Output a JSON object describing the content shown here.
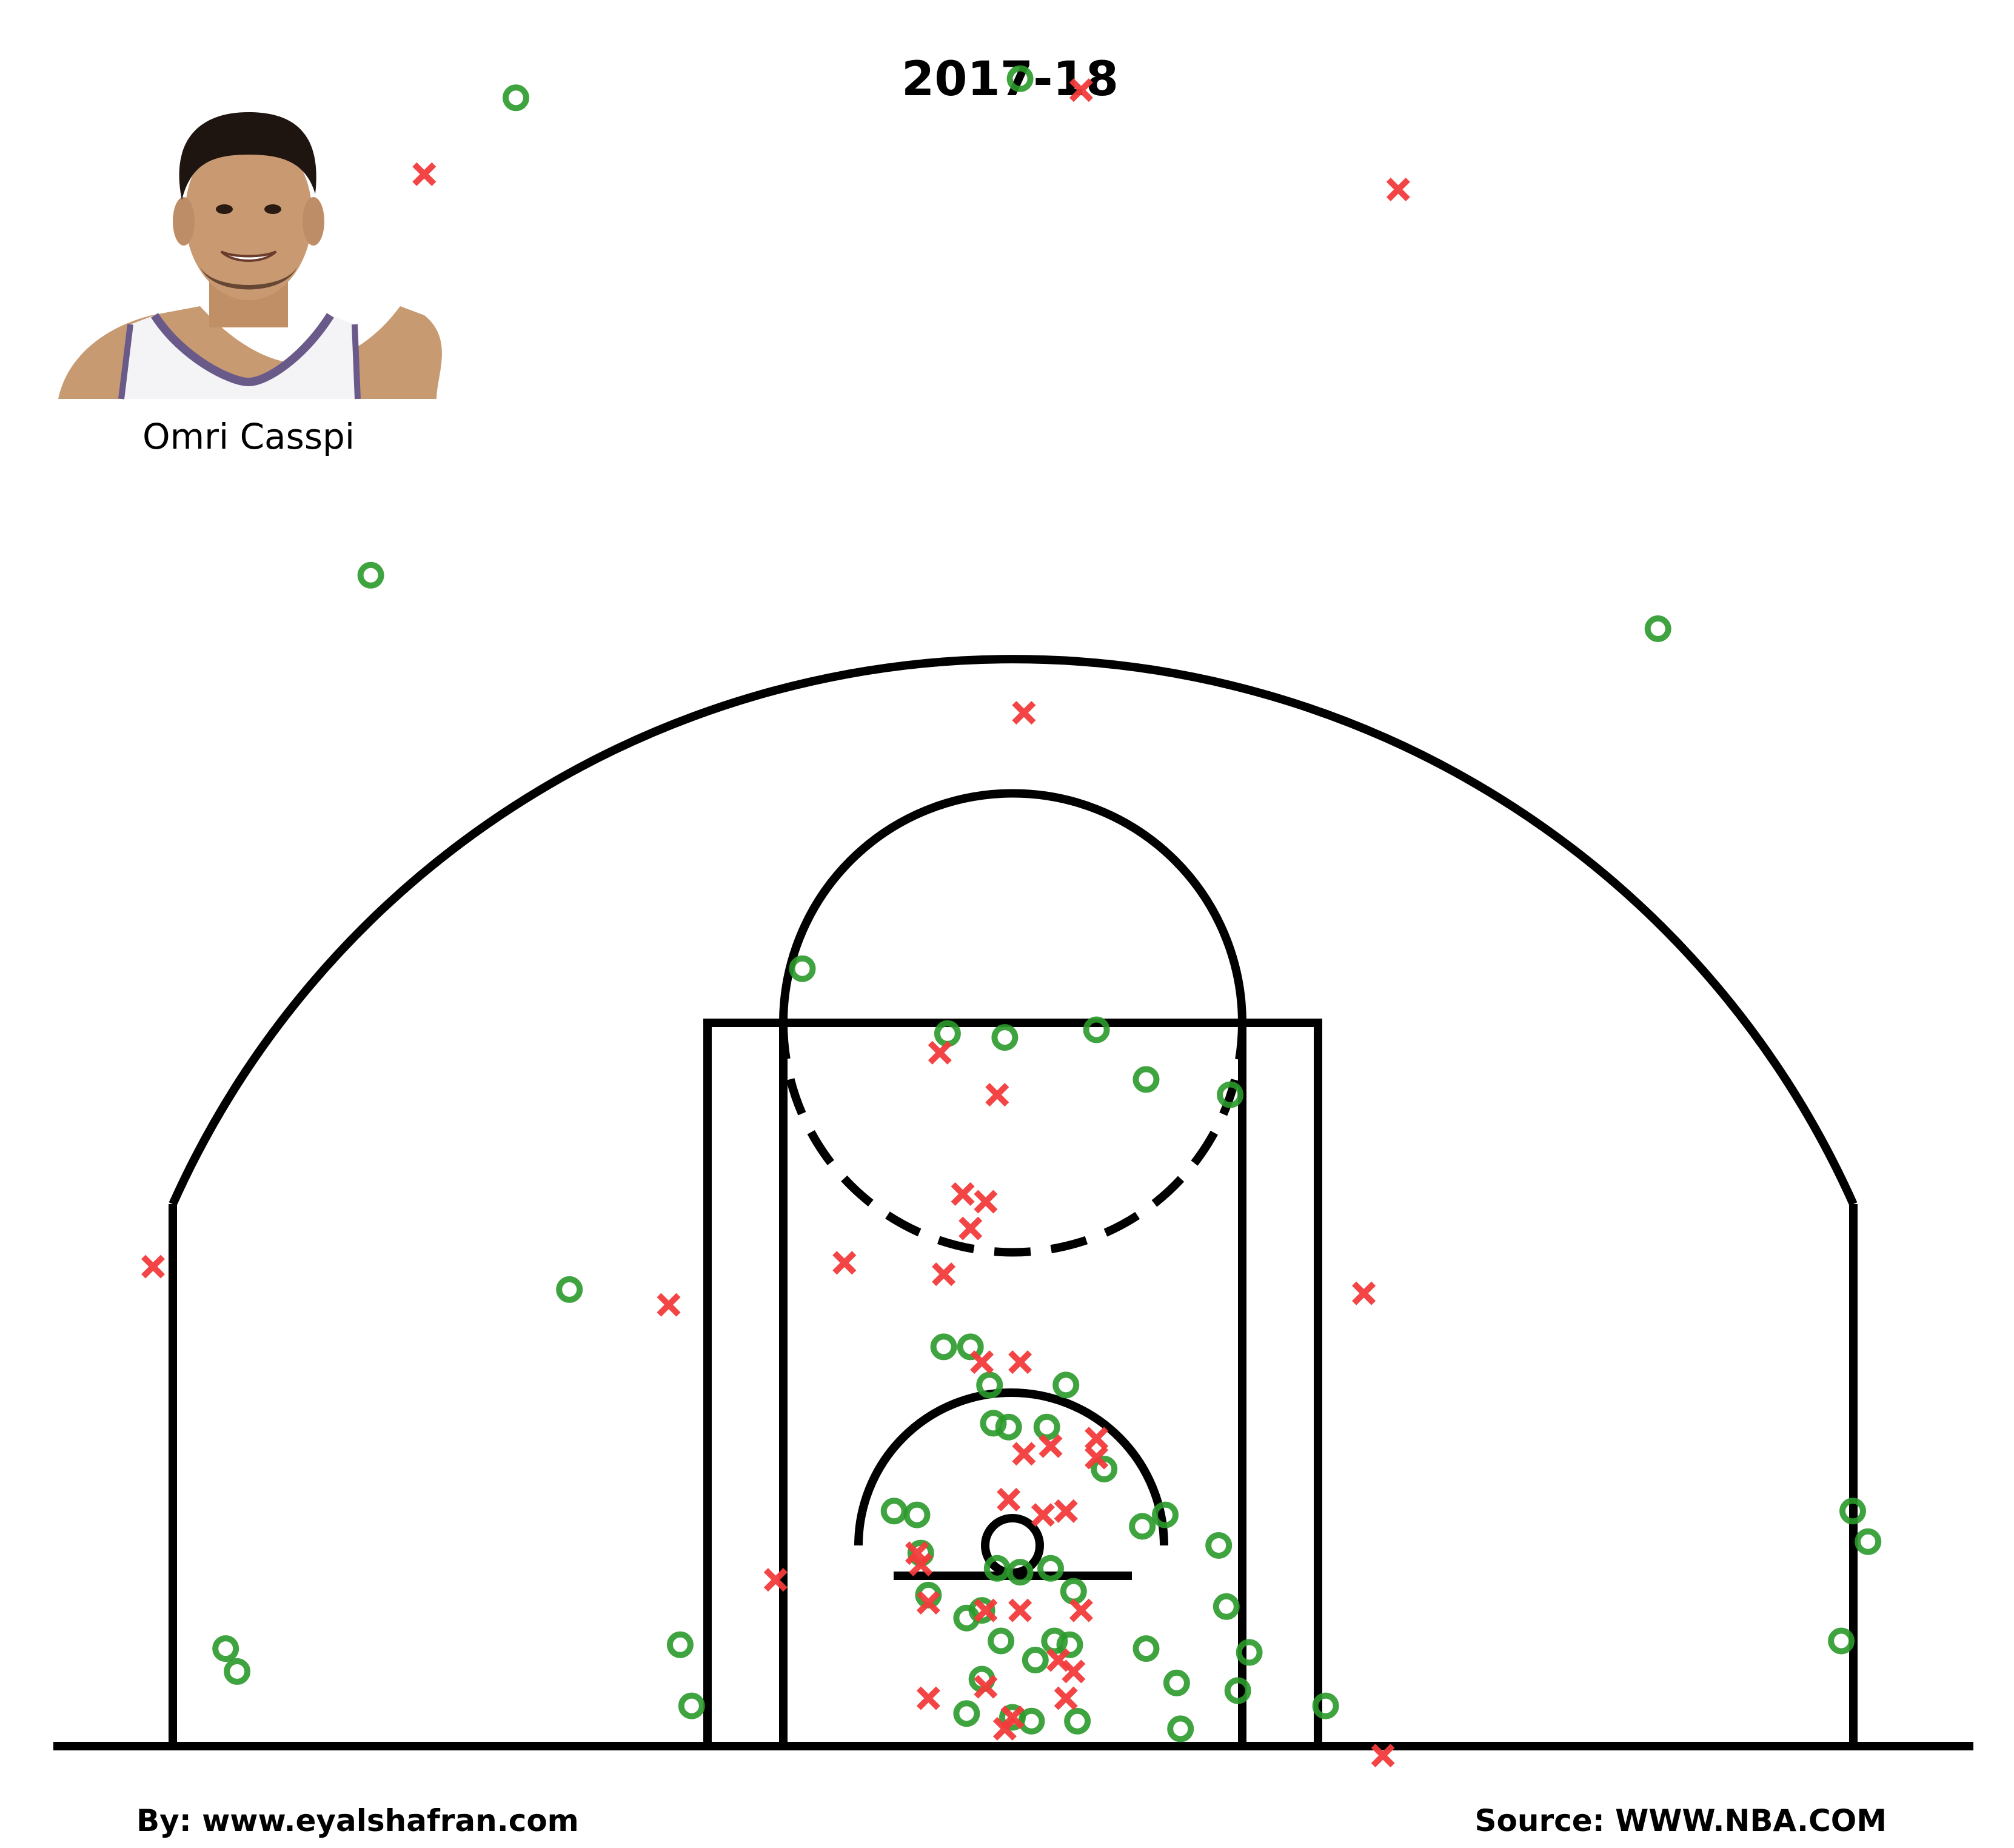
{
  "header": {
    "season": "2017-18"
  },
  "player": {
    "name": "Omri Casspi",
    "photo_icon": "player-headshot-icon"
  },
  "footer": {
    "credit": "By: www.eyalshafran.com",
    "source": "Source: WWW.NBA.COM"
  },
  "colors": {
    "made": "#2a9a2a",
    "missed": "#f23b3b",
    "court_lines": "#000000"
  },
  "chart_data": {
    "type": "scatter",
    "title": "2017-18",
    "xlabel": "",
    "ylabel": "",
    "grid": false,
    "axes_visible": false,
    "xlim": [
      -250,
      250
    ],
    "ylim": [
      -47.5,
      422.5
    ],
    "series": [
      {
        "marker": "circle",
        "points": [
          [
            2,
            384
          ],
          [
            -130,
            379
          ],
          [
            -168,
            254
          ],
          [
            169,
            240
          ],
          [
            -55,
            151
          ],
          [
            -17,
            134
          ],
          [
            -2,
            133
          ],
          [
            22,
            135
          ],
          [
            57,
            118
          ],
          [
            35,
            122
          ],
          [
            -116,
            67
          ],
          [
            -206,
            -27
          ],
          [
            -87,
            -26
          ],
          [
            -84,
            -42
          ],
          [
            -18,
            52
          ],
          [
            -11,
            52
          ],
          [
            -6,
            42
          ],
          [
            -5,
            32
          ],
          [
            -1,
            31
          ],
          [
            9,
            31
          ],
          [
            14,
            42
          ],
          [
            24,
            20
          ],
          [
            34,
            5
          ],
          [
            40,
            8
          ],
          [
            -25,
            8
          ],
          [
            -31,
            9
          ],
          [
            -24,
            -2
          ],
          [
            -22,
            -13
          ],
          [
            -12,
            -19
          ],
          [
            -4,
            -6
          ],
          [
            2,
            -7
          ],
          [
            10,
            -6
          ],
          [
            16,
            -12
          ],
          [
            -8,
            -17
          ],
          [
            -3,
            -25
          ],
          [
            11,
            -25
          ],
          [
            15,
            -26
          ],
          [
            6,
            -30
          ],
          [
            35,
            -27
          ],
          [
            43,
            -36
          ],
          [
            -8,
            -35
          ],
          [
            -12,
            -44
          ],
          [
            0,
            -45
          ],
          [
            5,
            -46
          ],
          [
            17,
            -46
          ],
          [
            44,
            -48
          ],
          [
            56,
            -16
          ],
          [
            62,
            -28
          ],
          [
            59,
            -38
          ],
          [
            54,
            0
          ],
          [
            82,
            -42
          ],
          [
            217,
            -25
          ],
          [
            220,
            9
          ],
          [
            224,
            1
          ],
          [
            -203,
            -33
          ]
        ]
      },
      {
        "marker": "x",
        "points": [
          [
            18,
            381
          ],
          [
            -154,
            359
          ],
          [
            101,
            355
          ],
          [
            3,
            218
          ],
          [
            -19,
            129
          ],
          [
            -4,
            118
          ],
          [
            -11,
            83
          ],
          [
            -13,
            92
          ],
          [
            -7,
            90
          ],
          [
            -18,
            71
          ],
          [
            -44,
            74
          ],
          [
            -90,
            63
          ],
          [
            -225,
            73
          ],
          [
            92,
            66
          ],
          [
            -8,
            48
          ],
          [
            2,
            48
          ],
          [
            3,
            24
          ],
          [
            10,
            26
          ],
          [
            22,
            23
          ],
          [
            22,
            28
          ],
          [
            -1,
            12
          ],
          [
            8,
            8
          ],
          [
            14,
            9
          ],
          [
            -25,
            -2
          ],
          [
            -24,
            -5
          ],
          [
            -22,
            -15
          ],
          [
            -7,
            -17
          ],
          [
            2,
            -17
          ],
          [
            18,
            -17
          ],
          [
            12,
            -30
          ],
          [
            16,
            -33
          ],
          [
            -7,
            -37
          ],
          [
            -22,
            -40
          ],
          [
            14,
            -40
          ],
          [
            0,
            -45
          ],
          [
            -2,
            -48
          ],
          [
            -62,
            -9
          ],
          [
            97,
            -55
          ]
        ]
      }
    ]
  }
}
